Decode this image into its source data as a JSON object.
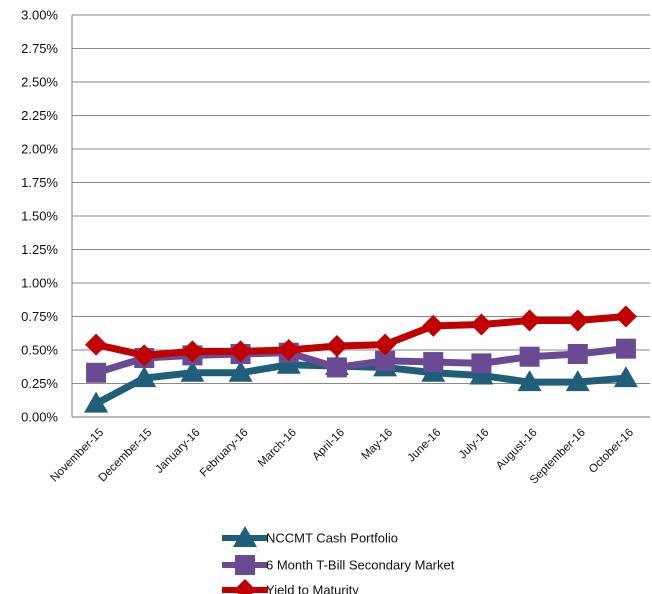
{
  "chart_data": {
    "type": "line",
    "title": "",
    "xlabel": "",
    "ylabel": "",
    "categories": [
      "November-15",
      "December-15",
      "January-16",
      "February-16",
      "March-16",
      "April-16",
      "May-16",
      "June-16",
      "July-16",
      "August-16",
      "September-16",
      "October-16"
    ],
    "ylim": [
      0,
      3.0
    ],
    "yticks": [
      "0.00%",
      "0.25%",
      "0.50%",
      "0.75%",
      "1.00%",
      "1.25%",
      "1.50%",
      "1.75%",
      "2.00%",
      "2.25%",
      "2.50%",
      "2.75%",
      "3.00%"
    ],
    "grid": true,
    "legend_position": "bottom",
    "series": [
      {
        "name": "NCCMT Cash Portfolio",
        "color": "#1f5f7a",
        "marker": "triangle",
        "values": [
          0.1,
          0.29,
          0.33,
          0.33,
          0.39,
          0.38,
          0.37,
          0.33,
          0.31,
          0.26,
          0.26,
          0.29
        ]
      },
      {
        "name": "6 Month T-Bill Secondary Market",
        "color": "#6a4a93",
        "marker": "square",
        "values": [
          0.33,
          0.44,
          0.46,
          0.47,
          0.48,
          0.37,
          0.42,
          0.41,
          0.4,
          0.45,
          0.47,
          0.51
        ]
      },
      {
        "name": "Yield to Maturity",
        "color": "#c00000",
        "marker": "diamond",
        "values": [
          0.54,
          0.46,
          0.49,
          0.49,
          0.5,
          0.53,
          0.54,
          0.68,
          0.69,
          0.72,
          0.72,
          0.75
        ]
      }
    ]
  }
}
